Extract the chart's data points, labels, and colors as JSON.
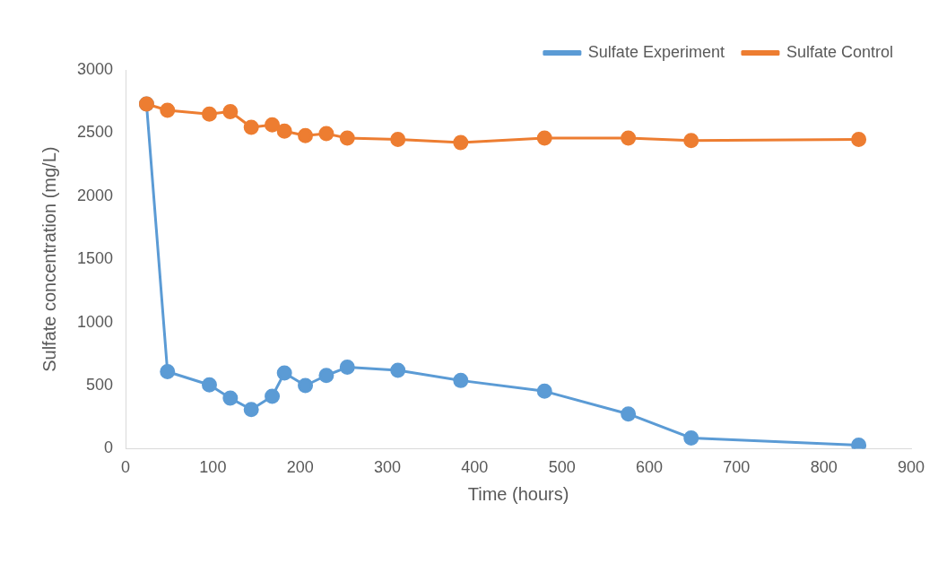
{
  "chart_data": {
    "type": "line",
    "xlabel": "Time (hours)",
    "ylabel": "Sulfate concentration (mg/L)",
    "xlim": [
      0,
      900
    ],
    "xticks": [
      0,
      100,
      200,
      300,
      400,
      500,
      600,
      700,
      800,
      900
    ],
    "ylim": [
      0,
      3000
    ],
    "yticks": [
      0,
      500,
      1000,
      1500,
      2000,
      2500,
      3000
    ],
    "legend": "top right",
    "marker": "circle",
    "grid": false,
    "series": [
      {
        "name": "Sulfate Experiment",
        "color": "#5b9bd5",
        "x": [
          24,
          48,
          96,
          120,
          144,
          168,
          182,
          206,
          230,
          254,
          312,
          384,
          480,
          576,
          648,
          840
        ],
        "values": [
          2730,
          610,
          505,
          400,
          310,
          415,
          600,
          500,
          580,
          645,
          620,
          540,
          455,
          275,
          85,
          28
        ]
      },
      {
        "name": "Sulfate Control",
        "color": "#ed7d31",
        "x": [
          24,
          48,
          96,
          120,
          144,
          168,
          182,
          206,
          230,
          254,
          312,
          384,
          480,
          576,
          648,
          840
        ],
        "values": [
          2730,
          2680,
          2650,
          2670,
          2545,
          2565,
          2515,
          2480,
          2495,
          2460,
          2450,
          2425,
          2460,
          2460,
          2440,
          2450
        ]
      }
    ]
  }
}
